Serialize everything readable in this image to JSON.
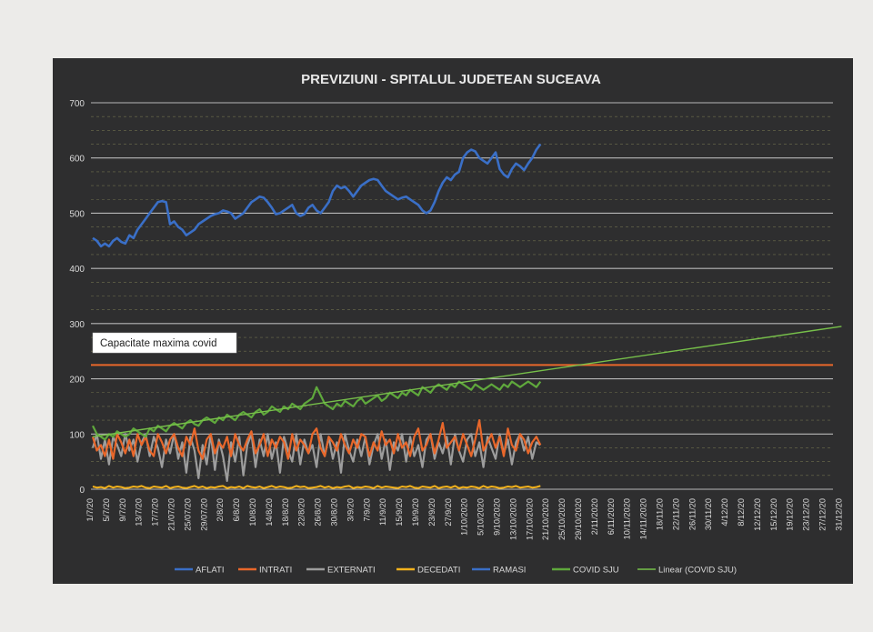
{
  "chart_data": {
    "type": "line",
    "title": "PREVIZIUNI - SPITALUL JUDETEAN SUCEAVA",
    "ylim": [
      0,
      700
    ],
    "yticks": [
      0,
      100,
      200,
      300,
      400,
      500,
      600,
      700
    ],
    "grid": true,
    "legend_position": "bottom",
    "x_labels": [
      "1/7/20",
      "5/7/20",
      "9/7/20",
      "13/7/20",
      "17/7/20",
      "21/07/20",
      "25/07/20",
      "29/07/20",
      "2/8/20",
      "6/8/20",
      "10/8/20",
      "14/8/20",
      "18/8/20",
      "22/8/20",
      "26/8/20",
      "30/8/20",
      "3/9/20",
      "7/9/20",
      "11/9/20",
      "15/9/20",
      "19/9/20",
      "23/9/20",
      "27/9/20",
      "1/10/2020",
      "5/10/2020",
      "9/10/2020",
      "13/10/2020",
      "17/10/2020",
      "21/10/2020",
      "25/10/2020",
      "29/10/2020",
      "2/11/2020",
      "6/11/2020",
      "10/11/2020",
      "14/11/2020",
      "18/11/20",
      "22/11/20",
      "26/11/20",
      "30/11/20",
      "4/12/20",
      "8/12/20",
      "12/12/20",
      "15/12/20",
      "19/12/20",
      "23/12/20",
      "27/12/20",
      "31/12/20"
    ],
    "annotation": {
      "text": "Capacitate maxima covid",
      "y": 225,
      "color": "#e9672a"
    },
    "series": [
      {
        "name": "AFLATI",
        "color": "#3a6fc7",
        "values": [
          455,
          450,
          440,
          445,
          440,
          450,
          455,
          448,
          445,
          460,
          455,
          470,
          480,
          490,
          500,
          510,
          520,
          522,
          520,
          480,
          485,
          475,
          470,
          460,
          465,
          470,
          480,
          485,
          490,
          495,
          498,
          500,
          505,
          503,
          500,
          490,
          495,
          500,
          510,
          520,
          525,
          530,
          528,
          520,
          510,
          498,
          500,
          505,
          510,
          515,
          500,
          495,
          498,
          510,
          515,
          505,
          500,
          510,
          520,
          540,
          550,
          545,
          548,
          540,
          530,
          540,
          550,
          555,
          560,
          562,
          560,
          550,
          540,
          535,
          530,
          525,
          528,
          530,
          525,
          520,
          515,
          505,
          500,
          505,
          520,
          540,
          555,
          565,
          560,
          570,
          575,
          600,
          610,
          615,
          612,
          600,
          595,
          590,
          600,
          610,
          580,
          570,
          565,
          580,
          590,
          585,
          578,
          590,
          600,
          615,
          625
        ]
      },
      {
        "name": "INTRATI",
        "color": "#e9672a",
        "values": [
          95,
          70,
          80,
          60,
          90,
          55,
          100,
          85,
          65,
          90,
          60,
          100,
          80,
          95,
          70,
          60,
          100,
          85,
          65,
          90,
          100,
          75,
          60,
          95,
          80,
          110,
          70,
          55,
          90,
          100,
          65,
          85,
          75,
          95,
          60,
          100,
          80,
          70,
          90,
          105,
          65,
          80,
          100,
          60,
          90,
          75,
          95,
          85,
          55,
          100,
          70,
          90,
          80,
          65,
          100,
          110,
          75,
          60,
          95,
          85,
          70,
          100,
          80,
          65,
          90,
          75,
          100,
          95,
          60,
          85,
          70,
          105,
          80,
          90,
          65,
          100,
          75,
          85,
          60,
          95,
          110,
          70,
          80,
          100,
          65,
          90,
          120,
          75,
          85,
          95,
          70,
          100,
          80,
          60,
          90,
          125,
          70,
          85,
          100,
          75,
          95,
          60,
          110,
          80,
          70,
          100,
          90,
          65,
          85,
          95,
          80
        ]
      },
      {
        "name": "EXTERNATI",
        "color": "#9d9d9d",
        "values": [
          75,
          100,
          55,
          90,
          45,
          95,
          80,
          60,
          100,
          70,
          90,
          50,
          85,
          100,
          60,
          95,
          75,
          40,
          90,
          65,
          100,
          55,
          85,
          30,
          95,
          70,
          20,
          80,
          45,
          100,
          35,
          90,
          60,
          15,
          85,
          50,
          95,
          25,
          80,
          100,
          40,
          90,
          60,
          100,
          55,
          85,
          30,
          95,
          70,
          50,
          100,
          45,
          90,
          65,
          80,
          40,
          100,
          60,
          95,
          55,
          85,
          30,
          100,
          70,
          50,
          90,
          60,
          95,
          45,
          80,
          100,
          55,
          90,
          35,
          85,
          70,
          100,
          50,
          95,
          60,
          80,
          40,
          90,
          100,
          55,
          85,
          65,
          95,
          45,
          100,
          70,
          50,
          90,
          100,
          60,
          85,
          40,
          95,
          75,
          55,
          100,
          65,
          90,
          45,
          85,
          100,
          70,
          95,
          55,
          85,
          80
        ]
      },
      {
        "name": "DECEDATI",
        "color": "#f3b21c",
        "values": [
          5,
          3,
          4,
          2,
          6,
          3,
          5,
          4,
          2,
          3,
          5,
          4,
          6,
          3,
          2,
          5,
          4,
          3,
          6,
          2,
          4,
          5,
          3,
          2,
          4,
          6,
          3,
          5,
          2,
          4,
          3,
          5,
          6,
          2,
          4,
          3,
          5,
          2,
          6,
          4,
          3,
          5,
          2,
          4,
          6,
          3,
          5,
          4,
          2,
          3,
          6,
          4,
          5,
          2,
          3,
          4,
          6,
          3,
          5,
          2,
          4,
          3,
          5,
          6,
          2,
          4,
          3,
          5,
          4,
          2,
          6,
          3,
          5,
          4,
          3,
          2,
          5,
          4,
          6,
          3,
          2,
          5,
          4,
          3,
          6,
          2,
          4,
          5,
          3,
          6,
          2,
          4,
          3,
          5,
          4,
          2,
          6,
          3,
          5,
          4,
          2,
          3,
          5,
          4,
          6,
          3,
          4,
          5,
          3,
          4,
          6
        ]
      },
      {
        "name": "RAMASI",
        "color": "#3a6fc7",
        "values": []
      },
      {
        "name": "COVID SJU",
        "color": "#5fa83c",
        "values": [
          115,
          100,
          95,
          90,
          100,
          95,
          105,
          100,
          95,
          100,
          110,
          105,
          100,
          95,
          110,
          105,
          115,
          110,
          105,
          115,
          120,
          115,
          110,
          120,
          125,
          118,
          115,
          125,
          130,
          125,
          120,
          130,
          125,
          135,
          130,
          125,
          135,
          140,
          135,
          130,
          140,
          145,
          135,
          140,
          150,
          145,
          140,
          150,
          145,
          155,
          150,
          145,
          155,
          160,
          165,
          185,
          170,
          155,
          150,
          145,
          155,
          150,
          160,
          155,
          150,
          160,
          165,
          155,
          160,
          165,
          170,
          160,
          165,
          175,
          170,
          165,
          175,
          170,
          180,
          175,
          170,
          185,
          180,
          175,
          185,
          190,
          185,
          180,
          190,
          185,
          195,
          190,
          185,
          180,
          190,
          185,
          180,
          185,
          190,
          185,
          180,
          190,
          185,
          195,
          190,
          185,
          190,
          195,
          190,
          185,
          195
        ]
      },
      {
        "name": "Linear (COVID SJU)",
        "color": "#77c04a",
        "trend": [
          95,
          295
        ]
      }
    ]
  }
}
